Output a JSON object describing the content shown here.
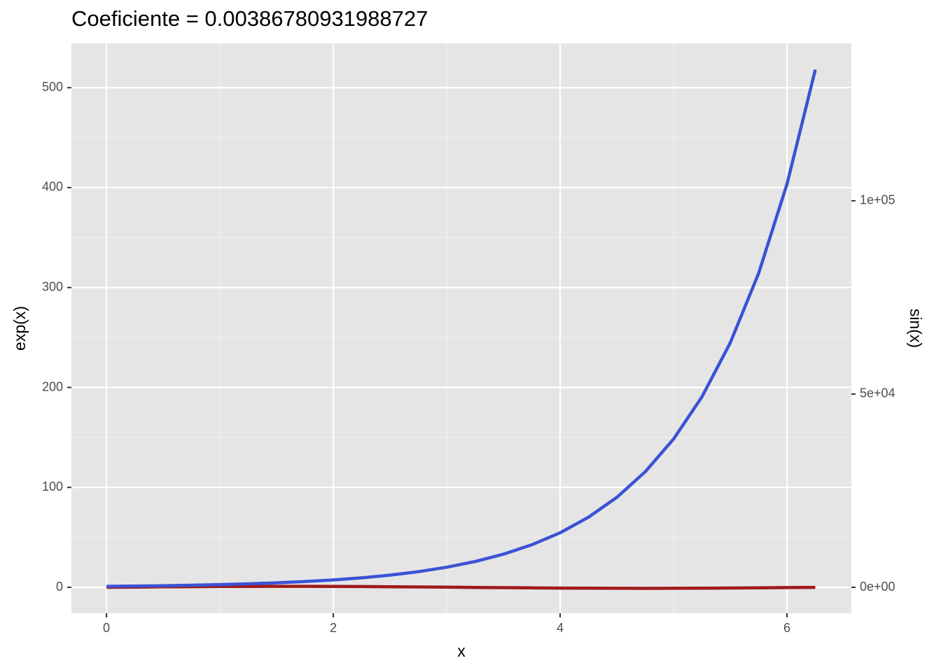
{
  "chart_data": {
    "type": "line",
    "title": "Coeficiente =  0.00386780931988727",
    "x_label": "x",
    "y_label": "exp(x)",
    "y2_label": "sin(x)",
    "x": [
      0,
      0.25,
      0.5,
      0.75,
      1,
      1.25,
      1.5,
      1.75,
      2,
      2.25,
      2.5,
      2.75,
      3,
      3.25,
      3.5,
      3.75,
      4,
      4.25,
      4.5,
      4.75,
      5,
      5.25,
      5.5,
      5.75,
      6,
      6.25
    ],
    "series": [
      {
        "name": "exp(x)",
        "color": "#3a52d6",
        "values": [
          1,
          1.28,
          1.65,
          2.12,
          2.72,
          3.49,
          4.48,
          5.75,
          7.39,
          9.49,
          12.18,
          15.64,
          20.09,
          25.79,
          33.12,
          42.52,
          54.6,
          70.11,
          90.02,
          115.58,
          148.41,
          190.57,
          244.69,
          314.19,
          403.43,
          518.01
        ]
      },
      {
        "name": "sin(x)",
        "color": "#a01a1a",
        "values": [
          0,
          0.25,
          0.48,
          0.68,
          0.84,
          0.95,
          1,
          0.98,
          0.91,
          0.78,
          0.6,
          0.38,
          0.14,
          -0.11,
          -0.35,
          -0.57,
          -0.76,
          -0.89,
          -0.98,
          -1,
          -0.96,
          -0.86,
          -0.71,
          -0.51,
          -0.28,
          -0.03
        ]
      }
    ],
    "xlim": [
      -0.309,
      6.568
    ],
    "xticks": [
      0,
      2,
      4,
      6
    ],
    "ylim": [
      -25.9,
      544.3
    ],
    "yticks": [
      0,
      100,
      200,
      300,
      400,
      500
    ],
    "y2lim": [
      -6696,
      140725
    ],
    "y2ticks": [
      {
        "value": 0,
        "label": "0e+00"
      },
      {
        "value": 50000,
        "label": "5e+04"
      },
      {
        "value": 100000,
        "label": "1e+05"
      }
    ],
    "grid": true,
    "minor_grid": true,
    "panel_color": "#e5e5e5"
  }
}
